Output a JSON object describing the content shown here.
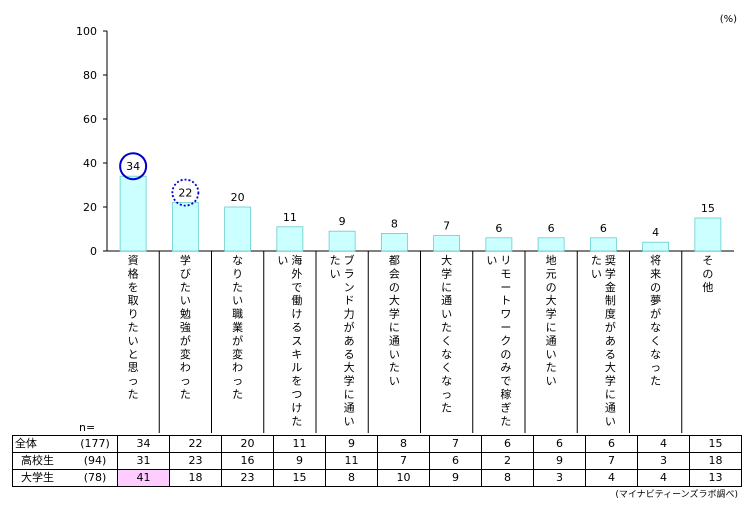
{
  "chart_data": {
    "type": "bar",
    "unit": "(%)",
    "ylim": [
      0,
      100
    ],
    "yticks": [
      "0",
      "20",
      "40",
      "60",
      "80",
      "100"
    ],
    "categories": [
      "資格を取りたいと思った",
      "学びたい勉強が変わった",
      "なりたい職業が変わった",
      "海外で働けるスキルをつけたい",
      "ブランド力がある大学に通いたい",
      "都会の大学に通いたい",
      "大学に通いたくなくなった",
      "リモートワークのみで稼ぎたい",
      "地元の大学に通いたい",
      "奨学金制度がある大学に通いたい",
      "将来の夢がなくなった",
      "その他"
    ],
    "values": [
      34,
      22,
      20,
      11,
      9,
      8,
      7,
      6,
      6,
      6,
      4,
      15
    ],
    "value_labels": [
      "34",
      "22",
      "20",
      "11",
      "9",
      "8",
      "7",
      "6",
      "6",
      "6",
      "4",
      "15"
    ],
    "bar_color": "#ccffff",
    "bar_edge": "#66cccc",
    "highlight": [
      {
        "index": 0,
        "style": "solid",
        "color": "#0000cc"
      },
      {
        "index": 1,
        "style": "dotted",
        "color": "#0000cc"
      }
    ],
    "grid": false
  },
  "table": {
    "n_header": "n=",
    "rows": [
      {
        "label": "全体",
        "n": "(177)",
        "values": [
          "34",
          "22",
          "20",
          "11",
          "9",
          "8",
          "7",
          "6",
          "6",
          "6",
          "4",
          "15"
        ]
      },
      {
        "label": "高校生",
        "n": "(94)",
        "values": [
          "31",
          "23",
          "16",
          "9",
          "11",
          "7",
          "6",
          "2",
          "9",
          "7",
          "3",
          "18"
        ]
      },
      {
        "label": "大学生",
        "n": "(78)",
        "values": [
          "41",
          "18",
          "23",
          "15",
          "8",
          "10",
          "9",
          "8",
          "3",
          "4",
          "4",
          "13"
        ]
      }
    ],
    "highlight_cell": {
      "row": 2,
      "col": 0,
      "color": "#ffccff"
    }
  },
  "source": "(マイナビティーンズラボ調べ)"
}
